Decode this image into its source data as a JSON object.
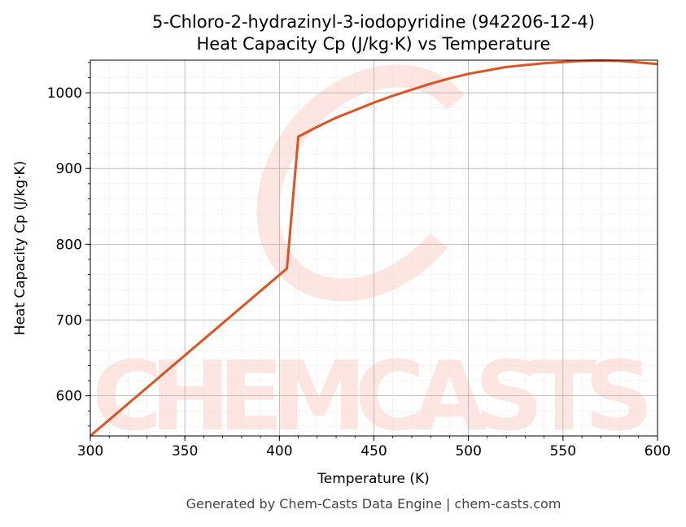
{
  "chart_data": {
    "type": "line",
    "title": "5-Chloro-2-hydrazinyl-3-iodopyridine (942206-12-4)",
    "subtitle": "Heat Capacity Cp (J/kg·K) vs Temperature",
    "xlabel": "Temperature (K)",
    "ylabel": "Heat Capacity Cp (J/kg·K)",
    "xlim": [
      300,
      600
    ],
    "ylim": [
      547,
      1043
    ],
    "xticks": [
      300,
      350,
      400,
      450,
      500,
      550,
      600
    ],
    "yticks": [
      600,
      700,
      800,
      900,
      1000
    ],
    "grid": true,
    "series": [
      {
        "name": "Cp",
        "color": "#e0521f",
        "x": [
          300,
          404,
          410,
          420,
          430,
          440,
          450,
          460,
          470,
          480,
          490,
          500,
          520,
          540,
          560,
          570,
          580,
          600
        ],
        "y": [
          547,
          768,
          942,
          955,
          967,
          977,
          987,
          996,
          1004,
          1012,
          1019,
          1025,
          1034,
          1039,
          1042,
          1042.5,
          1042,
          1038
        ]
      }
    ]
  },
  "watermark": "CHEMCASTS",
  "footer": "Generated by Chem-Casts Data Engine | chem-casts.com"
}
